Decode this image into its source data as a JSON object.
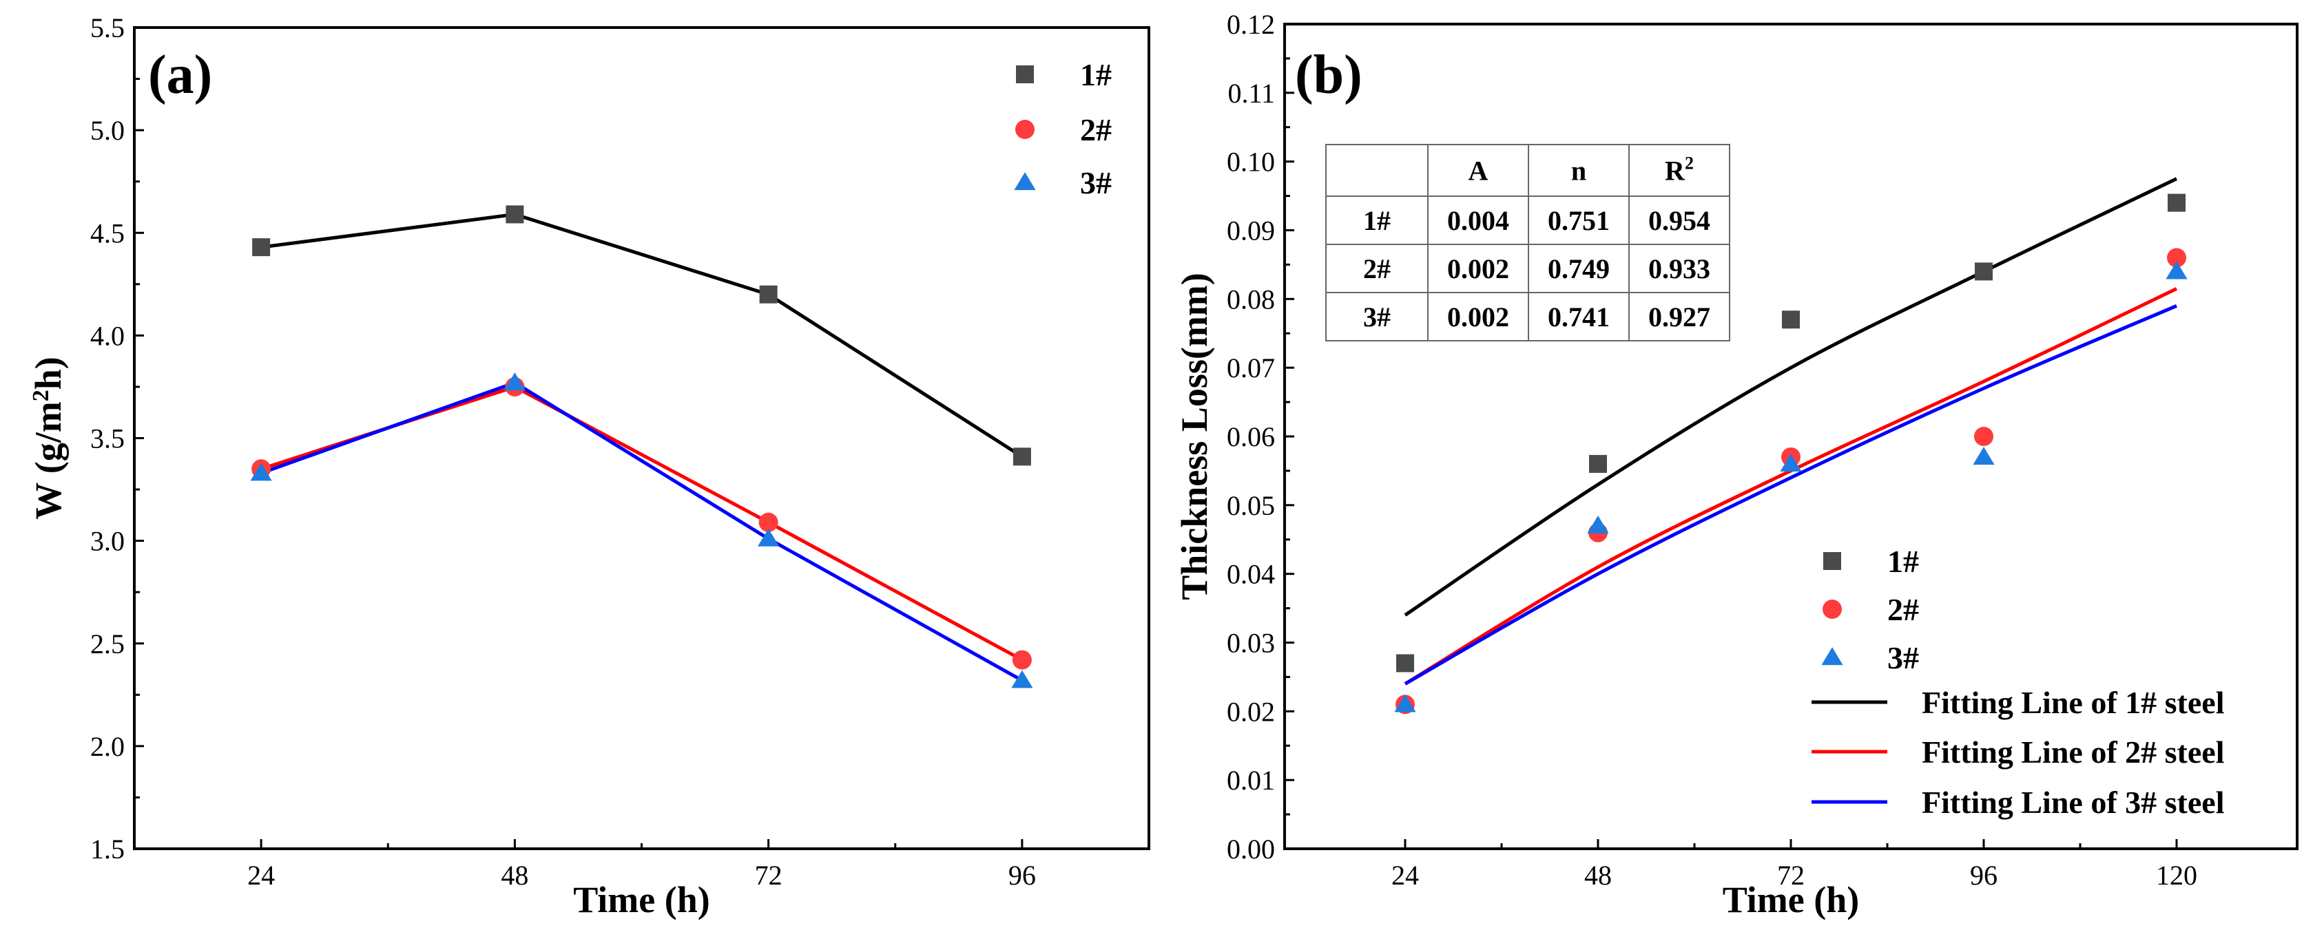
{
  "chart_data": [
    {
      "type": "line",
      "panel_label": "(a)",
      "xlabel": "Time (h)",
      "ylabel": "W (g/m²h)",
      "categories": [
        24,
        48,
        72,
        96
      ],
      "xticks": [
        "24",
        "48",
        "72",
        "96"
      ],
      "ylim": [
        1.5,
        5.5
      ],
      "yticks": [
        "1.5",
        "2.0",
        "2.5",
        "3.0",
        "3.5",
        "4.0",
        "4.5",
        "5.0",
        "5.5"
      ],
      "legend_position": "top-right",
      "series": [
        {
          "name": "1#",
          "marker": "square",
          "color": "#4a4a4a",
          "line_color": "#000000",
          "values": [
            4.43,
            4.59,
            4.2,
            3.41
          ]
        },
        {
          "name": "2#",
          "marker": "circle",
          "color": "#ff3b3b",
          "line_color": "#ff0000",
          "values": [
            3.35,
            3.75,
            3.09,
            2.42
          ]
        },
        {
          "name": "3#",
          "marker": "triangle",
          "color": "#1e7be0",
          "line_color": "#0000ff",
          "values": [
            3.33,
            3.77,
            3.01,
            2.32
          ]
        }
      ]
    },
    {
      "type": "scatter",
      "panel_label": "(b)",
      "xlabel": "Time (h)",
      "ylabel": "Thickness Loss(mm)",
      "x": [
        24,
        48,
        72,
        96,
        120
      ],
      "xticks": [
        "24",
        "48",
        "72",
        "96",
        "120"
      ],
      "ylim": [
        0.0,
        0.12
      ],
      "yticks": [
        "0.00",
        "0.01",
        "0.02",
        "0.03",
        "0.04",
        "0.05",
        "0.06",
        "0.07",
        "0.08",
        "0.09",
        "0.10",
        "0.11",
        "0.12"
      ],
      "legend_position": "bottom-right",
      "series": [
        {
          "name": "1#",
          "marker": "square",
          "color": "#4a4a4a",
          "values": [
            0.027,
            0.056,
            0.077,
            0.084,
            0.094
          ]
        },
        {
          "name": "2#",
          "marker": "circle",
          "color": "#ff3b3b",
          "values": [
            0.021,
            0.046,
            0.057,
            0.06,
            0.086
          ]
        },
        {
          "name": "3#",
          "marker": "triangle",
          "color": "#1e7be0",
          "values": [
            0.021,
            0.047,
            0.056,
            0.057,
            0.084
          ]
        }
      ],
      "fits": [
        {
          "name": "Fitting Line of 1# steel",
          "color": "#000000",
          "x": [
            24,
            48,
            72,
            96,
            120
          ],
          "values": [
            0.034,
            0.053,
            0.07,
            0.084,
            0.0975
          ]
        },
        {
          "name": "Fitting Line of 2# steel",
          "color": "#ff0000",
          "x": [
            24,
            48,
            72,
            96,
            120
          ],
          "values": [
            0.024,
            0.041,
            0.055,
            0.068,
            0.0815
          ]
        },
        {
          "name": "Fitting Line of 3# steel",
          "color": "#0000ff",
          "x": [
            24,
            48,
            72,
            96,
            120
          ],
          "values": [
            0.024,
            0.04,
            0.054,
            0.067,
            0.079
          ]
        }
      ],
      "table": {
        "headers": [
          "",
          "A",
          "n",
          "R²"
        ],
        "rows": [
          [
            "1#",
            "0.004",
            "0.751",
            "0.954"
          ],
          [
            "2#",
            "0.002",
            "0.749",
            "0.933"
          ],
          [
            "3#",
            "0.002",
            "0.741",
            "0.927"
          ]
        ]
      }
    }
  ]
}
